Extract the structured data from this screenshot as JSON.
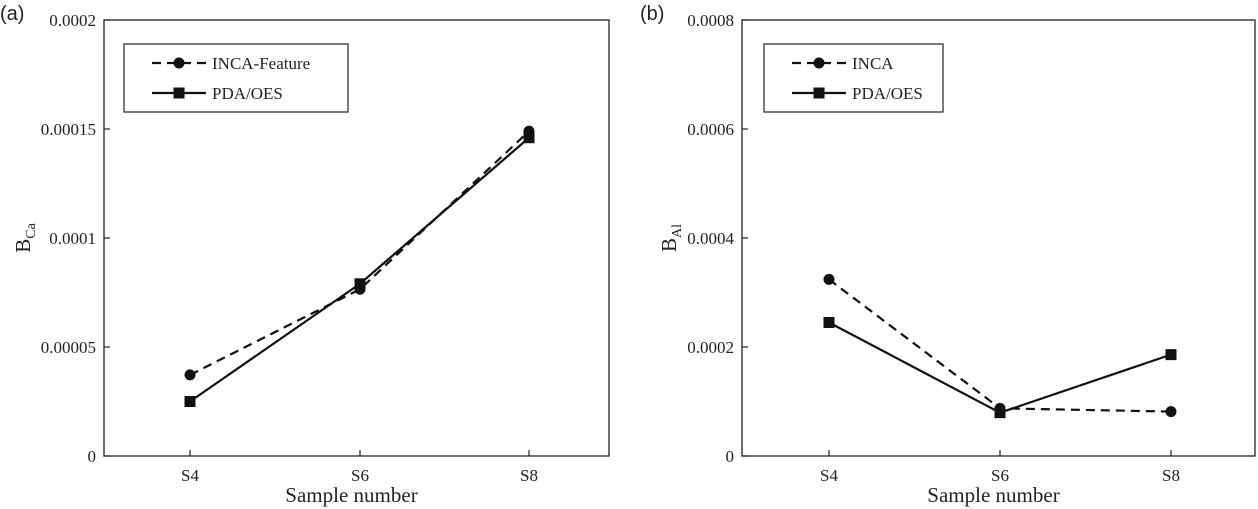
{
  "chart_data": [
    {
      "type": "line",
      "panel_label": "(a)",
      "xlabel": "Sample number",
      "ylabel_main": "B",
      "ylabel_sub": "Ca",
      "categories": [
        "S4",
        "S6",
        "S8"
      ],
      "ylim": [
        0,
        0.0002
      ],
      "yticks": [
        {
          "value": 0,
          "label": "0"
        },
        {
          "value": 5e-05,
          "label": "0.00005"
        },
        {
          "value": 0.0001,
          "label": "0.0001"
        },
        {
          "value": 0.00015,
          "label": "0.00015"
        },
        {
          "value": 0.0002,
          "label": "0.0002"
        }
      ],
      "legend_position": "top-left",
      "series": [
        {
          "name": "INCA-Feature",
          "values": [
            3.72e-05,
            7.65e-05,
            0.000149
          ],
          "marker": "circle",
          "dash": true
        },
        {
          "name": "PDA/OES",
          "values": [
            2.5e-05,
            7.9e-05,
            0.000146
          ],
          "marker": "square",
          "dash": false
        }
      ]
    },
    {
      "type": "line",
      "panel_label": "(b)",
      "xlabel": "Sample number",
      "ylabel_main": "B",
      "ylabel_sub": "Al",
      "categories": [
        "S4",
        "S6",
        "S8"
      ],
      "ylim": [
        0,
        0.0008
      ],
      "yticks": [
        {
          "value": 0,
          "label": "0"
        },
        {
          "value": 0.0002,
          "label": "0.0002"
        },
        {
          "value": 0.0004,
          "label": "0.0004"
        },
        {
          "value": 0.0006,
          "label": "0.0006"
        },
        {
          "value": 0.0008,
          "label": "0.0008"
        }
      ],
      "legend_position": "top-left",
      "series": [
        {
          "name": "INCA",
          "values": [
            0.000324,
            8.75e-05,
            8.15e-05
          ],
          "marker": "circle",
          "dash": true
        },
        {
          "name": "PDA/OES",
          "values": [
            0.000245,
            7.95e-05,
            0.000186
          ],
          "marker": "square",
          "dash": false
        }
      ]
    }
  ]
}
